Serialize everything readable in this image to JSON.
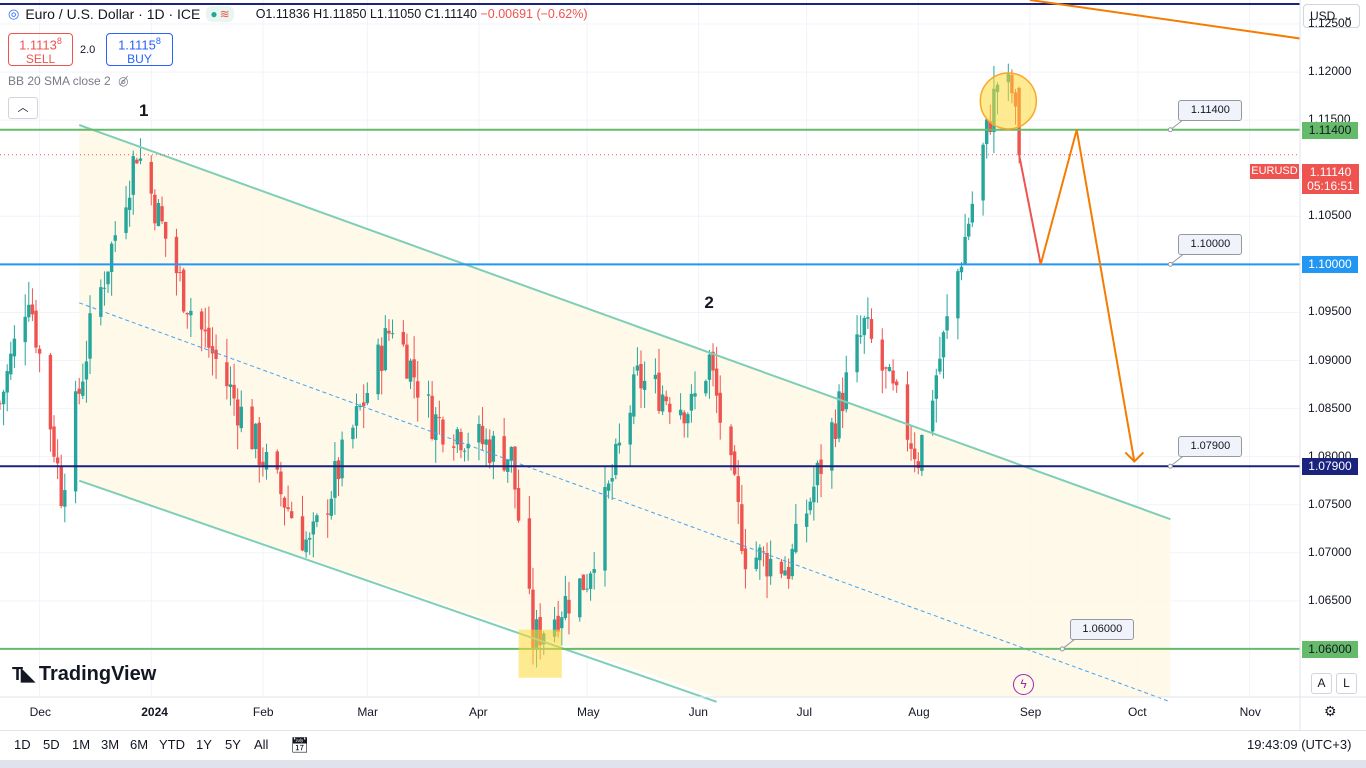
{
  "header": {
    "symbol_title": "Euro / U.S. Dollar · 1D · ICE",
    "open": "O1.11836",
    "high": "H1.11850",
    "low": "L1.11050",
    "close": "C1.11140",
    "change": "−0.00691 (−0.62%)"
  },
  "trade": {
    "sell_price": "1.1113",
    "sell_sup": "8",
    "sell_label": "SELL",
    "spread": "2.0",
    "buy_price": "1.1115",
    "buy_sup": "8",
    "buy_label": "BUY"
  },
  "indicator": {
    "label": "BB 20 SMA close 2"
  },
  "currency": {
    "label": "USD"
  },
  "last_price": {
    "symbol": "EURUSD",
    "price": "1.11140",
    "countdown": "05:16:51"
  },
  "colors": {
    "up": "#26a69a",
    "down": "#ef5350",
    "channel": "#7ecfb5",
    "level_green": "#66bb6a",
    "level_blue": "#2196f3",
    "level_navy": "#1a237e",
    "forecast": "#f57c00",
    "highlight": "#fdd835"
  },
  "labels": {
    "wave_1": "1",
    "wave_2": "2"
  },
  "callouts": [
    "1.11400",
    "1.10000",
    "1.07900",
    "1.06000"
  ],
  "logo": {
    "text": "TradingView",
    "icon": "tradingview-logo-icon"
  },
  "timeframes": [
    "1D",
    "5D",
    "1M",
    "3M",
    "6M",
    "YTD",
    "1Y",
    "5Y",
    "All"
  ],
  "clock": "19:43:09 (UTC+3)",
  "axis_buttons": {
    "a": "A",
    "l": "L"
  },
  "chart_data": {
    "type": "candlestick",
    "title": "Euro / U.S. Dollar · 1D · ICE",
    "y_axis": {
      "min": 1.055,
      "max": 1.1275,
      "ticks": [
        "1.12500",
        "1.12000",
        "1.11500",
        "1.10500",
        "1.09500",
        "1.09000",
        "1.08500",
        "1.08000",
        "1.07500",
        "1.07000",
        "1.06500"
      ]
    },
    "x_axis": {
      "range": [
        "2023-11-20",
        "2024-11-15"
      ],
      "ticks": [
        {
          "label": "Dec",
          "date": "2023-12-01"
        },
        {
          "label": "2024",
          "date": "2024-01-01"
        },
        {
          "label": "Feb",
          "date": "2024-02-01"
        },
        {
          "label": "Mar",
          "date": "2024-03-01"
        },
        {
          "label": "Apr",
          "date": "2024-04-01"
        },
        {
          "label": "May",
          "date": "2024-05-01"
        },
        {
          "label": "Jun",
          "date": "2024-06-01"
        },
        {
          "label": "Jul",
          "date": "2024-07-01"
        },
        {
          "label": "Aug",
          "date": "2024-08-01"
        },
        {
          "label": "Sep",
          "date": "2024-09-01"
        },
        {
          "label": "Oct",
          "date": "2024-10-01"
        },
        {
          "label": "Nov",
          "date": "2024-11-01"
        }
      ]
    },
    "series": [
      {
        "name": "EURUSD",
        "type": "candlestick",
        "anchors": [
          {
            "date": "2023-11-20",
            "close": 1.0855
          },
          {
            "date": "2023-11-28",
            "close": 1.0975
          },
          {
            "date": "2023-12-07",
            "close": 1.0765
          },
          {
            "date": "2023-12-15",
            "close": 1.093
          },
          {
            "date": "2023-12-28",
            "close": 1.112
          },
          {
            "date": "2024-01-10",
            "close": 1.097
          },
          {
            "date": "2024-02-02",
            "close": 1.079
          },
          {
            "date": "2024-02-14",
            "close": 1.0705
          },
          {
            "date": "2024-03-08",
            "close": 1.094
          },
          {
            "date": "2024-03-19",
            "close": 1.084
          },
          {
            "date": "2024-04-10",
            "close": 1.08
          },
          {
            "date": "2024-04-16",
            "close": 1.061
          },
          {
            "date": "2024-05-01",
            "close": 1.0675
          },
          {
            "date": "2024-05-15",
            "close": 1.088
          },
          {
            "date": "2024-05-30",
            "close": 1.085
          },
          {
            "date": "2024-06-04",
            "close": 1.09
          },
          {
            "date": "2024-06-14",
            "close": 1.07
          },
          {
            "date": "2024-06-26",
            "close": 1.0685
          },
          {
            "date": "2024-07-17",
            "close": 1.0935
          },
          {
            "date": "2024-08-01",
            "close": 1.08
          },
          {
            "date": "2024-08-08",
            "close": 1.092
          },
          {
            "date": "2024-08-23",
            "close": 1.119
          },
          {
            "date": "2024-08-27",
            "close": 1.118
          },
          {
            "date": "2024-08-29",
            "close": 1.1114
          }
        ],
        "last": {
          "date": "2024-08-29",
          "open": 1.11836,
          "high": 1.1185,
          "low": 1.1105,
          "close": 1.1114
        }
      }
    ],
    "horizontal_levels": [
      {
        "price": 1.114,
        "color": "level_green"
      },
      {
        "price": 1.1,
        "color": "level_blue"
      },
      {
        "price": 1.079,
        "color": "level_navy"
      },
      {
        "price": 1.06,
        "color": "level_green"
      }
    ],
    "channel": {
      "upper": [
        {
          "date": "2023-12-12",
          "price": 1.1145
        },
        {
          "date": "2024-10-10",
          "price": 1.0735
        }
      ],
      "lower": [
        {
          "date": "2023-12-12",
          "price": 1.0775
        },
        {
          "date": "2024-06-06",
          "price": 1.0545
        }
      ],
      "midline": [
        {
          "date": "2023-12-12",
          "price": 1.096
        },
        {
          "date": "2024-10-10",
          "price": 1.0545
        }
      ]
    },
    "forecast_path": [
      {
        "date": "2024-08-29",
        "price": 1.1114
      },
      {
        "date": "2024-09-04",
        "price": 1.1
      },
      {
        "date": "2024-09-14",
        "price": 1.114
      },
      {
        "date": "2024-09-30",
        "price": 1.0795
      }
    ],
    "long_trendline": [
      {
        "date": "2024-09-01",
        "price": 1.1275
      },
      {
        "date": "2024-11-15",
        "price": 1.1235
      }
    ],
    "wave_labels": [
      {
        "text": "1",
        "date": "2023-12-30",
        "price": 1.116
      },
      {
        "text": "2",
        "date": "2024-06-04",
        "price": 1.096
      }
    ],
    "callout_levels": [
      {
        "price": 1.114,
        "date": "2024-10-10"
      },
      {
        "price": 1.1,
        "date": "2024-10-10"
      },
      {
        "price": 1.079,
        "date": "2024-10-10"
      },
      {
        "price": 1.06,
        "date": "2024-09-10"
      }
    ],
    "highlights": [
      {
        "shape": "circle",
        "date": "2024-08-26",
        "price": 1.117
      },
      {
        "shape": "rect",
        "date_from": "2024-04-12",
        "date_to": "2024-04-24",
        "price_from": 1.057,
        "price_to": 1.062
      }
    ],
    "grid": true,
    "legend": "top-left"
  }
}
